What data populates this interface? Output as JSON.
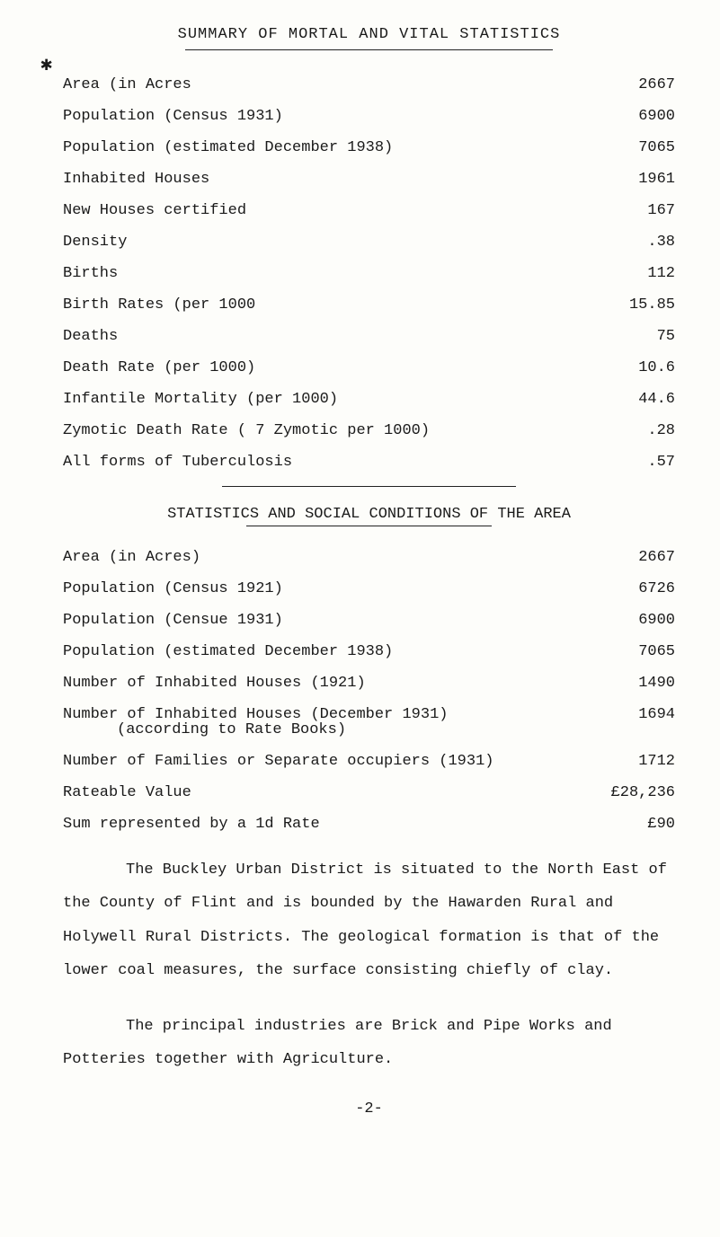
{
  "header": "SUMMARY OF MORTAL AND VITAL STATISTICS",
  "bullet": "✱",
  "rows1": [
    {
      "label": "Area (in Acres",
      "value": "2667"
    },
    {
      "label": "Population (Census 1931)",
      "value": "6900"
    },
    {
      "label": "Population (estimated December 1938)",
      "value": "7065"
    },
    {
      "label": "Inhabited Houses",
      "value": "1961"
    },
    {
      "label": "New Houses certified",
      "value": "167"
    },
    {
      "label": "Density",
      "value": ".38"
    },
    {
      "label": "Births",
      "value": "112"
    },
    {
      "label": "Birth Rates (per 1000",
      "value": "15.85"
    },
    {
      "label": "Deaths",
      "value": "75"
    },
    {
      "label": "Death Rate (per 1000)",
      "value": "10.6"
    },
    {
      "label": "Infantile Mortality (per 1000)",
      "value": "44.6"
    },
    {
      "label": "Zymotic Death Rate ( 7 Zymotic per 1000)",
      "value": ".28"
    },
    {
      "label": "All forms of Tuberculosis",
      "value": ".57"
    }
  ],
  "section2_title": "STATISTICS AND SOCIAL CONDITIONS OF THE AREA",
  "rows2": [
    {
      "label": "Area (in Acres)",
      "value": "2667"
    },
    {
      "label": "Population (Census 1921)",
      "value": "6726"
    },
    {
      "label": "Population (Censue 1931)",
      "value": "6900"
    },
    {
      "label": "Population (estimated December 1938)",
      "value": "7065"
    },
    {
      "label": "Number of Inhabited Houses (1921)",
      "value": "1490"
    }
  ],
  "rows2b_label1": "Number of Inhabited Houses (December 1931)",
  "rows2b_label2": "(according to Rate Books)",
  "rows2b_value": "1694",
  "rows2c": [
    {
      "label": "Number of Families or Separate occupiers (1931)",
      "value": "1712"
    },
    {
      "label": "Rateable Value",
      "value": "£28,236"
    },
    {
      "label": "Sum represented by a 1d Rate",
      "value": "£90"
    }
  ],
  "paragraph": "The Buckley Urban District is situated to the North East of the County of Flint and is bounded by the Hawarden Rural and Holywell Rural Districts.  The geological formation is that of the lower coal measures, the surface consisting chiefly of clay.",
  "paragraph2": "The principal industries are Brick and Pipe Works and Potteries together with Agriculture.",
  "pagenum": "-2-"
}
